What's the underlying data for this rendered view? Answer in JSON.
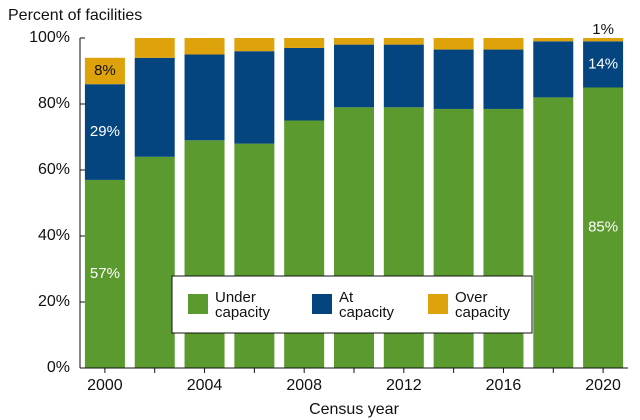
{
  "chart_data": {
    "type": "stacked_bar",
    "ylabel": "Percent of facilities",
    "xlabel": "Census year",
    "categories": [
      "2000",
      null,
      "2004",
      null,
      "2008",
      null,
      "2012",
      null,
      "2016",
      null,
      "2020"
    ],
    "series": [
      {
        "name": "Under capacity",
        "color": "#5b9a2f",
        "values": [
          57,
          64,
          69,
          68,
          75,
          79,
          79,
          78.5,
          78.5,
          82,
          85
        ],
        "value_labels": [
          "57%",
          null,
          null,
          null,
          null,
          null,
          null,
          null,
          null,
          null,
          "85%"
        ]
      },
      {
        "name": "At capacity",
        "color": "#05457f",
        "values": [
          29,
          30,
          26,
          28,
          22,
          19,
          19,
          18,
          18,
          17,
          14
        ],
        "value_labels": [
          "29%",
          null,
          null,
          null,
          null,
          null,
          null,
          null,
          null,
          null,
          "14%"
        ]
      },
      {
        "name": "Over capacity",
        "color": "#dea30a",
        "values": [
          8,
          6,
          5,
          4,
          3,
          2,
          2,
          3.5,
          3.5,
          1,
          1
        ],
        "value_labels": [
          "8%",
          null,
          null,
          null,
          null,
          null,
          null,
          null,
          null,
          null,
          "1%"
        ]
      }
    ],
    "ylim": [
      0,
      100
    ],
    "yticks": [
      {
        "value": 0,
        "label": "0%"
      },
      {
        "value": 20,
        "label": "20%"
      },
      {
        "value": 40,
        "label": "40%"
      },
      {
        "value": 60,
        "label": "60%"
      },
      {
        "value": 80,
        "label": "80%"
      },
      {
        "value": 100,
        "label": "100%"
      }
    ],
    "legend": "lower-center"
  }
}
